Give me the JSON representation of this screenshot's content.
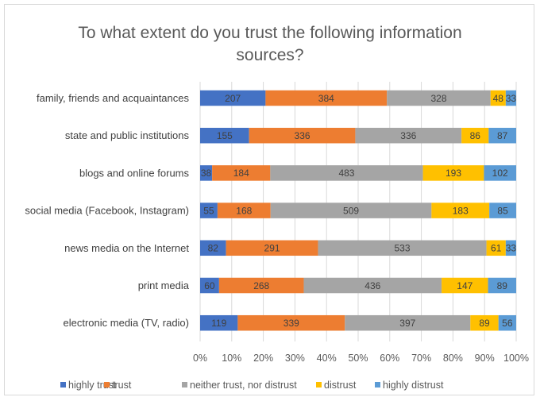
{
  "chart_data": {
    "type": "bar",
    "orientation": "horizontal",
    "stacked": "100%",
    "title_lines": [
      "To what extent do you trust  the following information",
      "sources?"
    ],
    "categories": [
      "family, friends and acquaintances",
      "state and public institutions",
      "blogs and online forums",
      "social media (Facebook, Instagram)",
      "news media on the Internet",
      "print media",
      "electronic media (TV, radio)"
    ],
    "series": [
      {
        "name": "highly trust",
        "color": "#4472c4",
        "values": [
          207,
          155,
          38,
          55,
          82,
          60,
          119
        ]
      },
      {
        "name": "trust",
        "color": "#ed7d31",
        "values": [
          384,
          336,
          184,
          168,
          291,
          268,
          339
        ]
      },
      {
        "name": "neither trust, nor distrust",
        "color": "#a5a5a5",
        "values": [
          328,
          336,
          483,
          509,
          533,
          436,
          397
        ]
      },
      {
        "name": "distrust",
        "color": "#ffc000",
        "values": [
          48,
          86,
          193,
          183,
          61,
          147,
          89
        ]
      },
      {
        "name": "highly distrust",
        "color": "#5b9bd5",
        "values": [
          33,
          87,
          102,
          85,
          33,
          89,
          56
        ]
      }
    ],
    "x_ticks": [
      "0%",
      "10%",
      "20%",
      "30%",
      "40%",
      "50%",
      "60%",
      "70%",
      "80%",
      "90%",
      "100%"
    ],
    "xlim": [
      0,
      100
    ],
    "grid": "vertical",
    "legend_position": "bottom"
  }
}
